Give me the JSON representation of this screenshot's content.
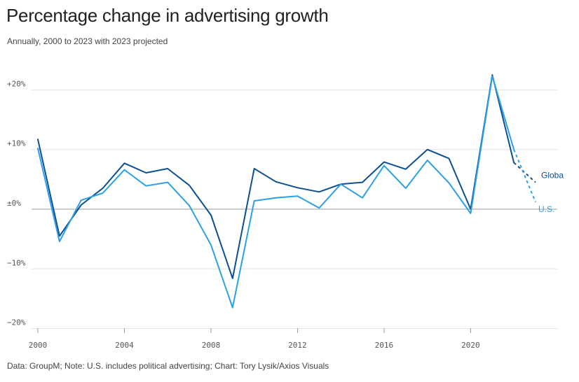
{
  "header": {
    "title": "Percentage change in advertising growth",
    "subtitle": "Annually, 2000 to 2023 with 2023 projected"
  },
  "footer": {
    "source": "Data: GroupM; Note: U.S. includes political advertising; Chart: Tory Lysik/Axios Visuals"
  },
  "colors": {
    "global": "#0b4f94",
    "us": "#2ba0e8",
    "grid": "#e3e3e3",
    "zero_line": "#bdbdbd"
  },
  "chart_data": {
    "type": "line",
    "title": "Percentage change in advertising growth",
    "subtitle": "Annually, 2000 to 2023 with 2023 projected",
    "xlabel": "",
    "ylabel": "",
    "xlim": [
      2000,
      2023
    ],
    "ylim": [
      -20,
      25
    ],
    "x_ticks": [
      2000,
      2004,
      2008,
      2012,
      2016,
      2020
    ],
    "x_tick_labels": [
      "2000",
      "2004",
      "2008",
      "2012",
      "2016",
      "2020"
    ],
    "y_ticks": [
      -20,
      -10,
      0,
      10,
      20
    ],
    "y_tick_labels": [
      "−20%",
      "−10%",
      "±0%",
      "+10%",
      "+20%"
    ],
    "grid": true,
    "projected_from": 2022,
    "projected_years": [
      2023
    ],
    "x": [
      2000,
      2001,
      2002,
      2003,
      2004,
      2005,
      2006,
      2007,
      2008,
      2009,
      2010,
      2011,
      2012,
      2013,
      2014,
      2015,
      2016,
      2017,
      2018,
      2019,
      2020,
      2021,
      2022,
      2023
    ],
    "series": [
      {
        "name": "Global",
        "label_text": "Globa",
        "color": "#0b4f94",
        "values": [
          11.7,
          -4.5,
          0.7,
          3.5,
          7.7,
          6.1,
          6.8,
          4.0,
          -1.0,
          -11.6,
          6.8,
          4.6,
          3.6,
          2.9,
          4.2,
          4.5,
          7.9,
          6.7,
          10.0,
          8.5,
          0.0,
          22.5,
          7.8,
          4.5
        ]
      },
      {
        "name": "U.S.",
        "label_text": "U.S.",
        "color": "#2ba0e8",
        "values": [
          10.2,
          -5.4,
          1.5,
          2.7,
          6.6,
          3.9,
          4.5,
          0.6,
          -6.0,
          -16.5,
          1.4,
          1.9,
          2.2,
          0.2,
          4.2,
          1.9,
          7.3,
          3.5,
          8.2,
          4.4,
          -0.7,
          22.3,
          10.0,
          1.2
        ]
      }
    ]
  }
}
